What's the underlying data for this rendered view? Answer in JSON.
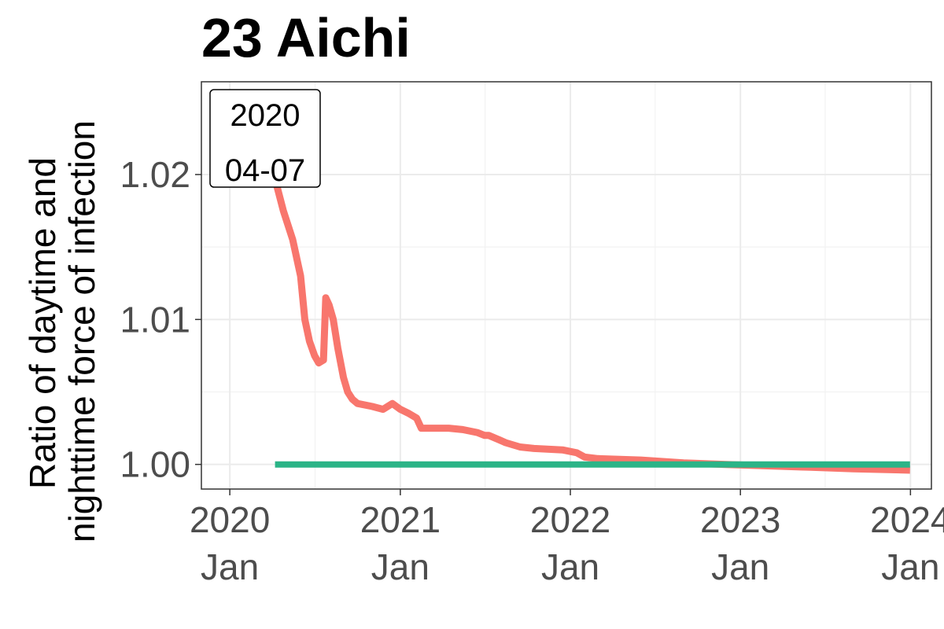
{
  "chart_data": {
    "type": "line",
    "title": "23 Aichi",
    "ylabel_lines": [
      "Ratio of daytime and",
      "nighttime force of infection"
    ],
    "xlabel": "",
    "date_badge": {
      "year": "2020",
      "date": "04-07"
    },
    "y_ticks": [
      {
        "value": 1.0,
        "label": "1.00"
      },
      {
        "value": 1.01,
        "label": "1.01"
      },
      {
        "value": 1.02,
        "label": "1.02"
      }
    ],
    "x_ticks": [
      {
        "value": "2020-01-01",
        "year": "2020",
        "month": "Jan"
      },
      {
        "value": "2021-01-01",
        "year": "2021",
        "month": "Jan"
      },
      {
        "value": "2022-01-01",
        "year": "2022",
        "month": "Jan"
      },
      {
        "value": "2023-01-01",
        "year": "2023",
        "month": "Jan"
      },
      {
        "value": "2024-01-01",
        "year": "2024",
        "month": "Jan"
      }
    ],
    "xlim": [
      "2019-11-01",
      "2024-02-15"
    ],
    "ylim": [
      0.9983,
      1.0264
    ],
    "grid": true,
    "legend": "none",
    "series": [
      {
        "color": "#F8766D",
        "x": [
          "2020-04-07",
          "2020-04-25",
          "2020-05-15",
          "2020-06-01",
          "2020-06-10",
          "2020-06-20",
          "2020-07-01",
          "2020-07-10",
          "2020-07-20",
          "2020-07-25",
          "2020-08-01",
          "2020-08-10",
          "2020-08-20",
          "2020-09-01",
          "2020-09-10",
          "2020-09-20",
          "2020-10-01",
          "2020-11-01",
          "2020-11-25",
          "2020-12-15",
          "2021-01-01",
          "2021-01-20",
          "2021-02-05",
          "2021-02-15",
          "2021-03-15",
          "2021-04-15",
          "2021-05-15",
          "2021-06-15",
          "2021-07-01",
          "2021-07-10",
          "2021-08-01",
          "2021-08-15",
          "2021-09-15",
          "2021-10-15",
          "2021-12-15",
          "2022-01-15",
          "2022-02-01",
          "2022-03-01",
          "2022-06-01",
          "2022-09-01",
          "2022-12-01",
          "2023-03-01",
          "2023-06-01",
          "2023-09-01",
          "2023-12-31"
        ],
        "values": [
          1.0197,
          1.0175,
          1.0155,
          1.013,
          1.01,
          1.0085,
          1.0075,
          1.007,
          1.0072,
          1.0115,
          1.011,
          1.01,
          1.008,
          1.006,
          1.005,
          1.0045,
          1.0042,
          1.004,
          1.0038,
          1.0042,
          1.0038,
          1.0035,
          1.0032,
          1.0025,
          1.0025,
          1.0025,
          1.0024,
          1.0022,
          1.002,
          1.002,
          1.0017,
          1.0015,
          1.0012,
          1.0011,
          1.001,
          1.0008,
          1.0005,
          1.0004,
          1.0003,
          1.0001,
          1.0,
          0.9999,
          0.9998,
          0.9997,
          0.9996
        ]
      },
      {
        "color": "#2BB487",
        "x": [
          "2020-04-07",
          "2023-12-31"
        ],
        "values": [
          1.0,
          1.0
        ]
      }
    ]
  }
}
